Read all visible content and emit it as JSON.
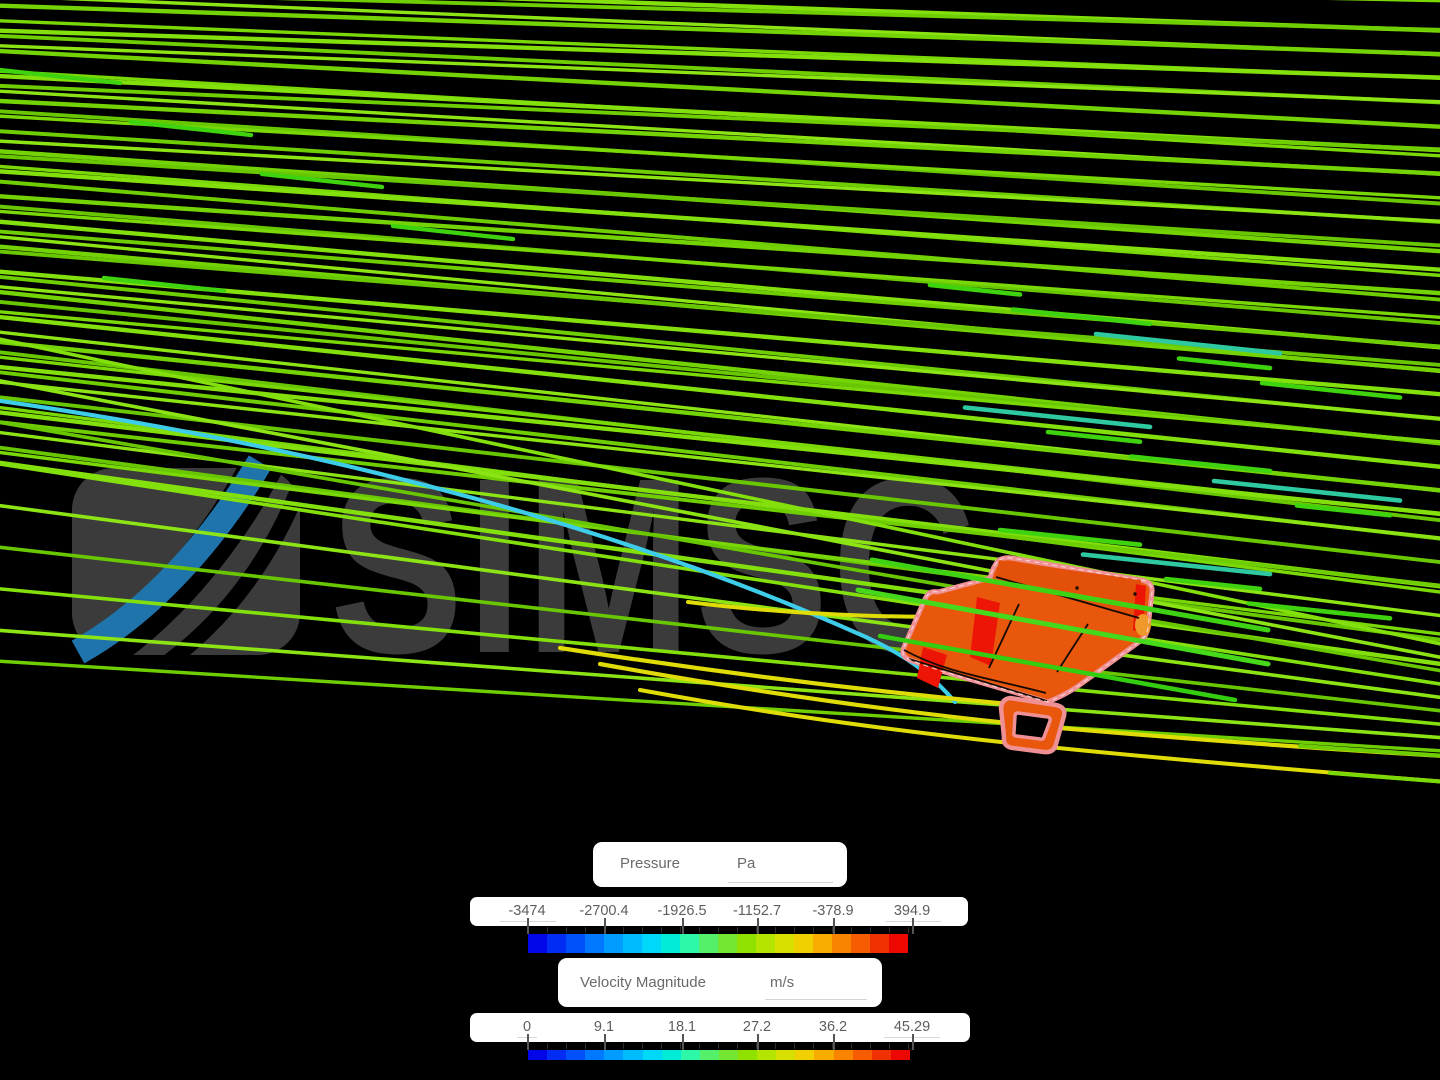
{
  "app": {
    "description": "CFD simulation post-processor viewport with streamlines over a front wing"
  },
  "watermark": {
    "text": "SIMSC"
  },
  "legend": {
    "pressure": {
      "title": "Pressure",
      "unit": "Pa",
      "tick_labels": [
        "-3474",
        "-2700.4",
        "-1926.5",
        "-1152.7",
        "-378.9",
        "394.9"
      ]
    },
    "velocity": {
      "title": "Velocity Magnitude",
      "unit": "m/s",
      "tick_labels": [
        "0",
        "9.1",
        "18.1",
        "27.2",
        "36.2",
        "45.29"
      ]
    }
  },
  "chart_data": [
    {
      "type": "colorbar",
      "title": "Pressure",
      "unit": "Pa",
      "range": [
        -3474,
        394.9
      ],
      "tick_values": [
        -3474,
        -2700.4,
        -1926.5,
        -1152.7,
        -378.9,
        394.9
      ],
      "orientation": "horizontal"
    },
    {
      "type": "colorbar",
      "title": "Velocity Magnitude",
      "unit": "m/s",
      "range": [
        0,
        45.29
      ],
      "tick_values": [
        0,
        9.1,
        18.1,
        27.2,
        36.2,
        45.29
      ],
      "orientation": "horizontal"
    }
  ],
  "colorbar_palette": [
    "#0006e8",
    "#002cf4",
    "#0050fa",
    "#0078ff",
    "#009cff",
    "#00bcff",
    "#00d8fa",
    "#00ecd8",
    "#2df8a8",
    "#55f06a",
    "#72e630",
    "#90e000",
    "#b4e400",
    "#d8e000",
    "#f0d000",
    "#f8ac00",
    "#f88400",
    "#f85c00",
    "#f03000",
    "#ec0800"
  ],
  "scene": {
    "background": "#000000",
    "watermark_gray": "#3b3b3b",
    "watermark_blue": "#1f74ab",
    "stream_greens": [
      "#79d806",
      "#83e00c",
      "#6fce02",
      "#8ce414",
      "#74d304",
      "#68c701"
    ],
    "stream_bright": [
      "#3ed30e",
      "#2ec9a0"
    ],
    "stream_cyan": "#3ecde8",
    "stream_yellow": "#e0dc08",
    "wing": {
      "body": "#e8570b",
      "endplate": "#e2500a",
      "outline": "#ef9095",
      "red_patch": "#ed1506",
      "tip_accent": "#f0992b",
      "seam": "#140a02",
      "inner_dash": "#ffd9d9"
    }
  }
}
